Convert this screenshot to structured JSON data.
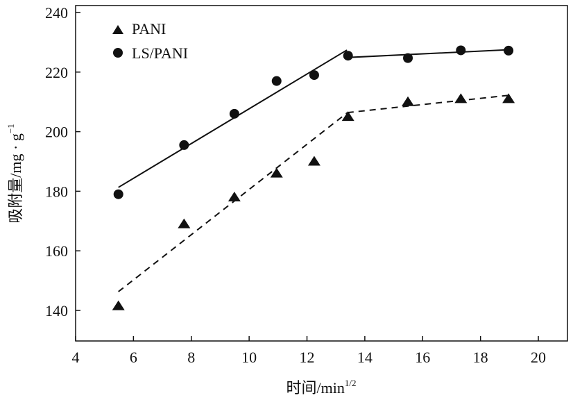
{
  "chart_data": {
    "type": "scatter",
    "xlabel": "时间/min",
    "xlabel_sup": "1/2",
    "ylabel": "吸附量/mg · g",
    "ylabel_sup": "−1",
    "xlim": [
      4,
      21
    ],
    "ylim": [
      130,
      241
    ],
    "xticks": [
      4,
      6,
      8,
      10,
      12,
      14,
      16,
      18,
      20
    ],
    "yticks": [
      140,
      160,
      180,
      200,
      220,
      240
    ],
    "grid": false,
    "legend_placement": "top-left",
    "series": [
      {
        "name": "PANI",
        "marker": "triangle",
        "color": "#111111",
        "x": [
          5.48,
          7.75,
          9.49,
          10.95,
          12.25,
          13.42,
          15.49,
          17.32,
          18.97
        ],
        "y": [
          141.5,
          169,
          178,
          186,
          190,
          205,
          210,
          211,
          211
        ],
        "fit_lines": [
          {
            "style": "dashed",
            "points": [
              [
                5.48,
                146.3
              ],
              [
                13.4,
                206.4
              ]
            ]
          },
          {
            "style": "dashed",
            "points": [
              [
                13.4,
                206.4
              ],
              [
                18.97,
                212.2
              ]
            ]
          }
        ]
      },
      {
        "name": "LS/PANI",
        "marker": "circle",
        "color": "#111111",
        "x": [
          5.48,
          7.75,
          9.49,
          10.95,
          12.25,
          13.42,
          15.49,
          17.32,
          18.97
        ],
        "y": [
          179,
          195.5,
          206,
          217,
          219,
          225.5,
          224.7,
          227.3,
          227.2
        ],
        "fit_lines": [
          {
            "style": "solid",
            "points": [
              [
                5.48,
                181.3
              ],
              [
                13.38,
                227.4
              ]
            ]
          },
          {
            "style": "solid",
            "points": [
              [
                13.4,
                224.9
              ],
              [
                18.97,
                227.5
              ]
            ]
          }
        ]
      }
    ]
  }
}
